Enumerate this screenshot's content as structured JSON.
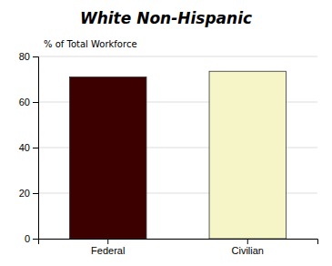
{
  "chart_data": {
    "type": "bar",
    "title": "White Non-Hispanic",
    "y_label": "% of Total Workforce",
    "categories": [
      "Federal",
      "Civilian"
    ],
    "values": [
      71.0,
      73.5
    ],
    "colors": [
      "#3d0000",
      "#f5f5c8"
    ],
    "ylim": [
      0,
      80
    ],
    "yticks": [
      0,
      20,
      40,
      60,
      80
    ],
    "grid": true
  }
}
